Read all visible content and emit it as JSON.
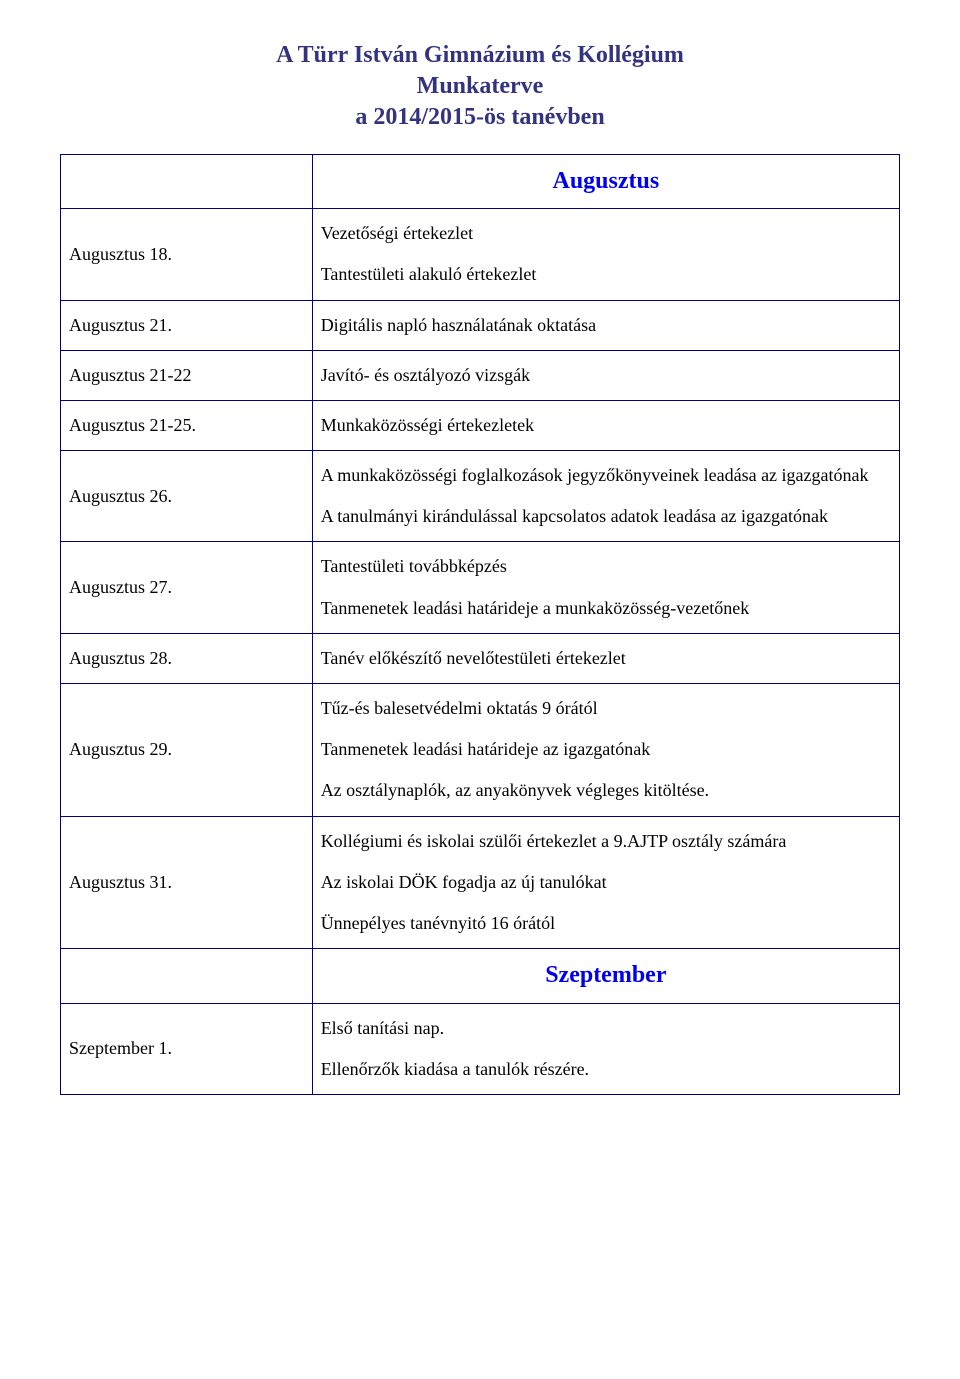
{
  "title": {
    "line1": "A Türr István Gimnázium és Kollégium",
    "line2": "Munkaterve",
    "line3": "a 2014/2015-ös tanévben",
    "color": "#333380",
    "fontsize": 24
  },
  "colors": {
    "border": "#000080",
    "month_header": "#0000ee",
    "text": "#000000",
    "background": "#ffffff"
  },
  "layout": {
    "date_col_width_pct": 30,
    "desc_col_width_pct": 70,
    "body_fontsize": 18
  },
  "sections": [
    {
      "month": "Augusztus",
      "rows": [
        {
          "date": "Augusztus 18.",
          "items": [
            "Vezetőségi értekezlet",
            "Tantestületi alakuló értekezlet"
          ]
        },
        {
          "date": "Augusztus 21.",
          "items": [
            "Digitális napló használatának oktatása"
          ]
        },
        {
          "date": "Augusztus 21-22",
          "items": [
            "Javító- és osztályozó vizsgák"
          ]
        },
        {
          "date": "Augusztus 21-25.",
          "items": [
            "Munkaközösségi értekezletek"
          ]
        },
        {
          "date": "Augusztus 26.",
          "items": [
            "A munkaközösségi foglalkozások jegyzőkönyveinek leadása az igazgatónak",
            "A tanulmányi kirándulással kapcsolatos adatok leadása az igazgatónak"
          ]
        },
        {
          "date": "Augusztus 27.",
          "items": [
            "Tantestületi továbbképzés",
            "Tanmenetek leadási határideje a munkaközösség-vezetőnek"
          ]
        },
        {
          "date": "Augusztus 28.",
          "items": [
            "Tanév előkészítő nevelőtestületi értekezlet"
          ]
        },
        {
          "date": "Augusztus 29.",
          "items": [
            "Tűz-és balesetvédelmi oktatás 9 órától",
            "Tanmenetek leadási határideje az igazgatónak",
            "Az osztálynaplók, az anyakönyvek végleges kitöltése."
          ]
        },
        {
          "date": "Augusztus 31.",
          "items": [
            "Kollégiumi és iskolai szülői értekezlet a 9.AJTP osztály számára",
            "Az iskolai DÖK fogadja az új tanulókat",
            "Ünnepélyes tanévnyitó 16 órától"
          ]
        }
      ]
    },
    {
      "month": "Szeptember",
      "rows": [
        {
          "date": "Szeptember 1.",
          "items": [
            "Első tanítási nap.",
            "Ellenőrzők kiadása a tanulók részére."
          ]
        }
      ]
    }
  ]
}
